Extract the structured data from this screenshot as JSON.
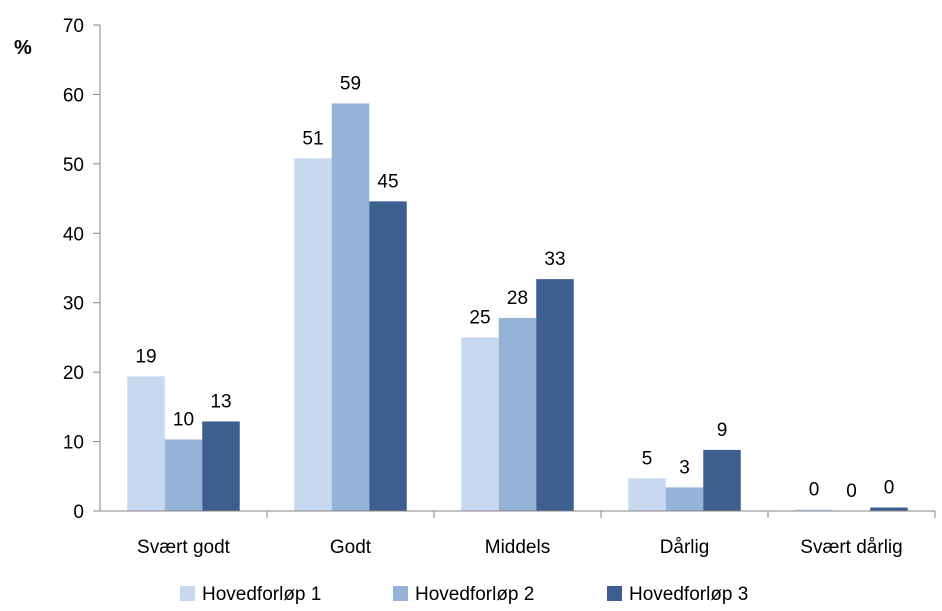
{
  "chart_data": {
    "type": "bar",
    "ylabel": "%",
    "ylim": [
      0,
      70
    ],
    "yticks": [
      0,
      10,
      20,
      30,
      40,
      50,
      60,
      70
    ],
    "categories": [
      "Svært godt",
      "Godt",
      "Middels",
      "Dårlig",
      "Svært dårlig"
    ],
    "series": [
      {
        "name": "Hovedforløp 1",
        "color": "#c6d9f0",
        "values": [
          19.4,
          50.8,
          25.0,
          4.7,
          0.2
        ],
        "labels": [
          "19",
          "51",
          "25",
          "5",
          "0"
        ]
      },
      {
        "name": "Hovedforløp 2",
        "color": "#95b3d7",
        "values": [
          10.3,
          58.7,
          27.8,
          3.4,
          0.0
        ],
        "labels": [
          "10",
          "59",
          "28",
          "3",
          "0"
        ]
      },
      {
        "name": "Hovedforløp 3",
        "color": "#3d5f8f",
        "values": [
          12.9,
          44.6,
          33.4,
          8.8,
          0.5
        ],
        "labels": [
          "13",
          "45",
          "33",
          "9",
          "0"
        ]
      }
    ],
    "grid": false,
    "legend": "bottom"
  }
}
